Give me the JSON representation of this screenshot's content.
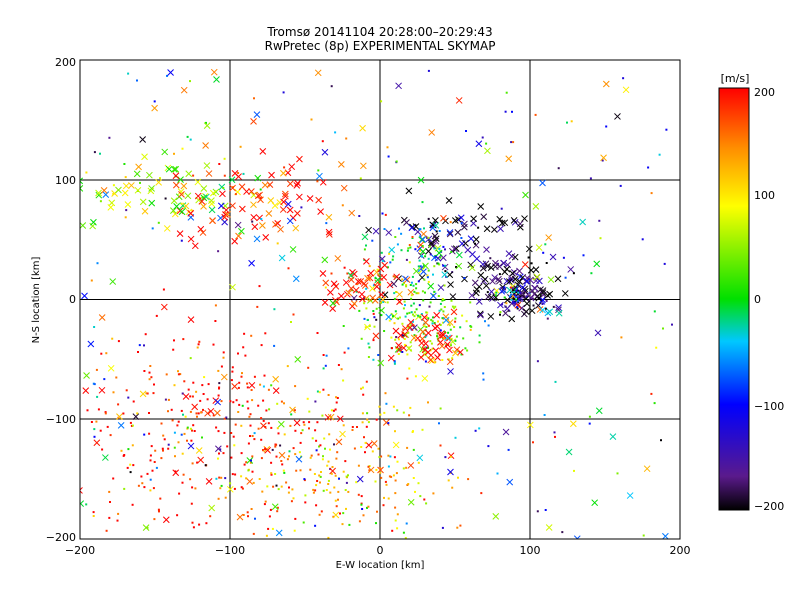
{
  "chart_data": {
    "type": "scatter",
    "title": "Tromsø 20141104 20:28:00–20:29:43",
    "subtitle": "RwPretec (8p) EXPERIMENTAL SKYMAP",
    "xlabel": "E-W location [km]",
    "ylabel": "N-S location [km]",
    "xlim": [
      -200,
      200
    ],
    "ylim": [
      -200,
      200
    ],
    "xticks": [
      "−200",
      "−100",
      "0",
      "100",
      "200"
    ],
    "yticks": [
      "200",
      "100",
      "0",
      "−100",
      "−200"
    ],
    "grid": true,
    "markers": [
      "dot",
      "x"
    ],
    "colorbar": {
      "label": "[m/s]",
      "range": [
        -200,
        200
      ],
      "ticks": [
        "200",
        "100",
        "0",
        "−100",
        "−200"
      ],
      "colormap": "rainbow-black",
      "stops": [
        "#000000",
        "#5a1a8c",
        "#0000ff",
        "#00c8ff",
        "#00e000",
        "#ffff00",
        "#ff8c00",
        "#ff0000"
      ]
    },
    "clusters": [
      {
        "region": "north-east",
        "x": 55,
        "y": 45,
        "spread_x": 25,
        "spread_y": 20,
        "velocity": -190,
        "marker": "x"
      },
      {
        "region": "east",
        "x": 92,
        "y": 5,
        "spread_x": 15,
        "spread_y": 12,
        "velocity": -200,
        "marker": "x"
      },
      {
        "region": "east-core",
        "x": 90,
        "y": 5,
        "spread_x": 5,
        "spread_y": 5,
        "velocity": -90,
        "marker": "dot"
      },
      {
        "region": "center",
        "x": 25,
        "y": -15,
        "spread_x": 20,
        "spread_y": 20,
        "velocity": 40,
        "marker": "dot"
      },
      {
        "region": "center-south",
        "x": 35,
        "y": -35,
        "spread_x": 15,
        "spread_y": 10,
        "velocity": 200,
        "marker": "x"
      },
      {
        "region": "north-west-band",
        "x": -150,
        "y": 90,
        "spread_x": 30,
        "spread_y": 15,
        "velocity": 60,
        "marker": "x"
      },
      {
        "region": "north-west-red",
        "x": -80,
        "y": 80,
        "spread_x": 30,
        "spread_y": 20,
        "velocity": 200,
        "marker": "x"
      },
      {
        "region": "south-west",
        "x": -110,
        "y": -110,
        "spread_x": 50,
        "spread_y": 45,
        "velocity": 200,
        "marker": "dot"
      },
      {
        "region": "south-central",
        "x": -20,
        "y": -140,
        "spread_x": 40,
        "spread_y": 30,
        "velocity": 120,
        "marker": "dot"
      },
      {
        "region": "center-north-cyan",
        "x": 20,
        "y": 40,
        "spread_x": 15,
        "spread_y": 15,
        "velocity": -20,
        "marker": "dot"
      },
      {
        "region": "center-west",
        "x": -10,
        "y": 10,
        "spread_x": 15,
        "spread_y": 10,
        "velocity": 200,
        "marker": "x"
      }
    ]
  }
}
